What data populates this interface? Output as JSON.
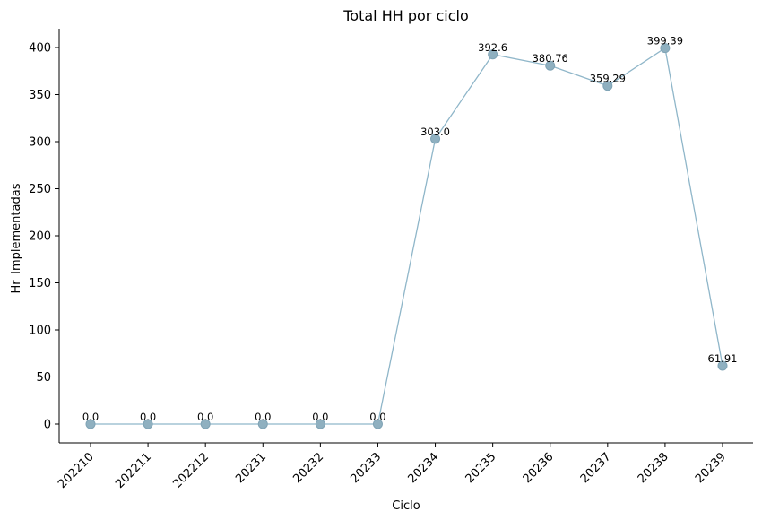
{
  "chart_data": {
    "type": "line",
    "title": "Total HH por ciclo",
    "xlabel": "Ciclo",
    "ylabel": "Hr_Implementadas",
    "categories": [
      "202210",
      "202211",
      "202212",
      "20231",
      "20232",
      "20233",
      "20234",
      "20235",
      "20236",
      "20237",
      "20238",
      "20239"
    ],
    "values": [
      0.0,
      0.0,
      0.0,
      0.0,
      0.0,
      0.0,
      303.0,
      392.6,
      380.76,
      359.29,
      399.39,
      61.91
    ],
    "data_labels": [
      "0.0",
      "0.0",
      "0.0",
      "0.0",
      "0.0",
      "0.0",
      "303.0",
      "392.6",
      "380.76",
      "359.29",
      "399.39",
      "61.91"
    ],
    "ylim": [
      -20,
      420
    ],
    "yticks": [
      0,
      50,
      100,
      150,
      200,
      250,
      300,
      350,
      400
    ],
    "ytick_labels": [
      "0",
      "50",
      "100",
      "150",
      "200",
      "250",
      "300",
      "350",
      "400"
    ],
    "grid": false,
    "legend": "none",
    "colors": {
      "line": "#8fb6c9",
      "marker": "#8fb0c0"
    }
  }
}
